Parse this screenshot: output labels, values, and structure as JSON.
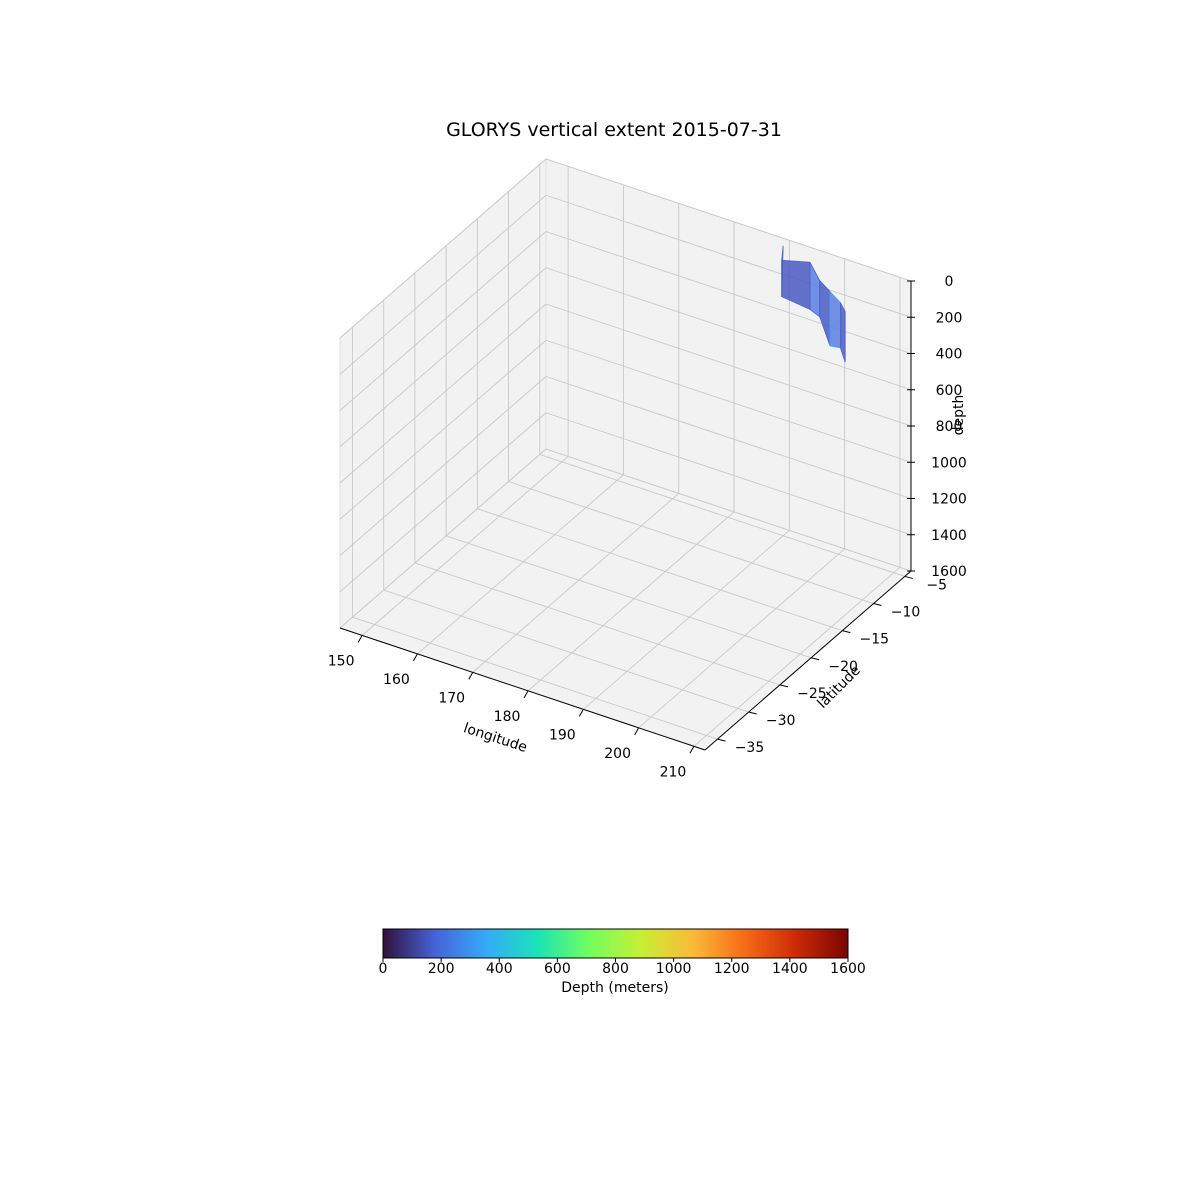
{
  "chart_data": {
    "type": "surface3d",
    "title": "GLORYS vertical extent 2015-07-31",
    "x_axis": {
      "label": "longitude",
      "ticks": [
        150,
        160,
        170,
        180,
        190,
        200,
        210
      ],
      "tick_labels": [
        "150",
        "160",
        "170",
        "180",
        "190",
        "200",
        "210"
      ]
    },
    "y_axis": {
      "label": "latitude",
      "ticks": [
        -35,
        -30,
        -25,
        -20,
        -15,
        -10,
        -5
      ],
      "tick_labels": [
        "−35",
        "−30",
        "−25",
        "−20",
        "−15",
        "−10",
        "−5"
      ]
    },
    "z_axis": {
      "label": "depth",
      "ticks": [
        0,
        200,
        400,
        600,
        800,
        1000,
        1200,
        1400,
        1600
      ],
      "tick_labels": [
        "0",
        "200",
        "400",
        "600",
        "800",
        "1000",
        "1200",
        "1400",
        "1600"
      ],
      "inverted": true
    },
    "grid": true,
    "surface": {
      "longitude_range": [
        190,
        210
      ],
      "latitude_range": [
        -12,
        -5
      ],
      "depth_range": [
        0,
        360
      ],
      "approx_values": [
        {
          "longitude": 190,
          "latitude": -5,
          "depth": 20
        },
        {
          "longitude": 192,
          "latitude": -7,
          "depth": 200
        },
        {
          "longitude": 196,
          "latitude": -6,
          "depth": 260
        },
        {
          "longitude": 200,
          "latitude": -8,
          "depth": 200
        },
        {
          "longitude": 203,
          "latitude": -9,
          "depth": 300
        },
        {
          "longitude": 206,
          "latitude": -10,
          "depth": 250
        },
        {
          "longitude": 208,
          "latitude": -11,
          "depth": 280
        }
      ]
    },
    "colorbar": {
      "label": "Depth (meters)",
      "colormap": "turbo",
      "range": [
        0,
        1600
      ],
      "ticks": [
        "0",
        "200",
        "400",
        "600",
        "800",
        "1000",
        "1200",
        "1400",
        "1600"
      ],
      "colors": [
        "#30123b",
        "#4662d7",
        "#36aaf9",
        "#1ae4b6",
        "#72fe5e",
        "#c7ef34",
        "#faba39",
        "#f66b19",
        "#cb2a04",
        "#7a0403"
      ]
    }
  }
}
